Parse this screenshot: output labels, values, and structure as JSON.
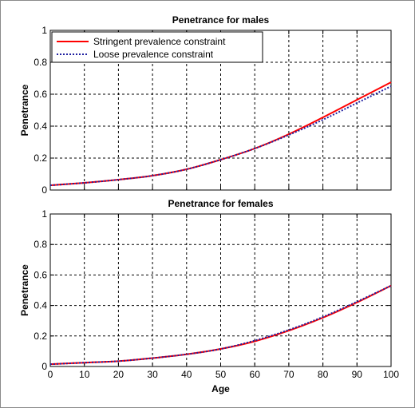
{
  "chart_data": [
    {
      "type": "line",
      "title": "Penetrance for males",
      "xlabel": "",
      "ylabel": "Penetrance",
      "xlim": [
        0,
        100
      ],
      "ylim": [
        0,
        1
      ],
      "grid": true,
      "xticks": [
        0,
        10,
        20,
        30,
        40,
        50,
        60,
        70,
        80,
        90,
        100
      ],
      "yticks": [
        0,
        0.2,
        0.4,
        0.6,
        0.8,
        1
      ],
      "ytick_labels": [
        "0",
        "0.2",
        "0.4",
        "0.6",
        "0.8",
        "1"
      ],
      "xtick_labels": [],
      "legend": "top-left",
      "series": [
        {
          "name": "Stringent prevalence constraint",
          "color": "#ff0000",
          "style": "solid",
          "x": [
            0,
            10,
            20,
            30,
            40,
            50,
            60,
            70,
            80,
            90,
            100
          ],
          "y": [
            0.03,
            0.045,
            0.065,
            0.09,
            0.13,
            0.19,
            0.26,
            0.35,
            0.455,
            0.565,
            0.675
          ]
        },
        {
          "name": "Loose prevalence constraint",
          "color": "#1f1fa0",
          "style": "dotted",
          "x": [
            0,
            10,
            20,
            30,
            40,
            50,
            60,
            70,
            80,
            90,
            100
          ],
          "y": [
            0.03,
            0.045,
            0.065,
            0.09,
            0.13,
            0.19,
            0.26,
            0.345,
            0.44,
            0.545,
            0.65
          ]
        }
      ]
    },
    {
      "type": "line",
      "title": "Penetrance for females",
      "xlabel": "Age",
      "ylabel": "Penetrance",
      "xlim": [
        0,
        100
      ],
      "ylim": [
        0,
        1
      ],
      "grid": true,
      "xticks": [
        0,
        10,
        20,
        30,
        40,
        50,
        60,
        70,
        80,
        90,
        100
      ],
      "xtick_labels": [
        "0",
        "10",
        "20",
        "30",
        "40",
        "50",
        "60",
        "70",
        "80",
        "90",
        "100"
      ],
      "yticks": [
        0,
        0.2,
        0.4,
        0.6,
        0.8,
        1
      ],
      "ytick_labels": [
        "0",
        "0.2",
        "0.4",
        "0.6",
        "0.8",
        "1"
      ],
      "series": [
        {
          "color": "#ff0000",
          "style": "solid",
          "x": [
            0,
            10,
            20,
            30,
            40,
            50,
            60,
            70,
            80,
            90,
            100
          ],
          "y": [
            0.015,
            0.025,
            0.035,
            0.055,
            0.08,
            0.115,
            0.165,
            0.235,
            0.32,
            0.42,
            0.53
          ]
        },
        {
          "color": "#1f1fa0",
          "style": "dotted",
          "x": [
            0,
            10,
            20,
            30,
            40,
            50,
            60,
            70,
            80,
            90,
            100
          ],
          "y": [
            0.015,
            0.025,
            0.035,
            0.055,
            0.08,
            0.115,
            0.17,
            0.24,
            0.325,
            0.425,
            0.53
          ]
        }
      ]
    }
  ]
}
